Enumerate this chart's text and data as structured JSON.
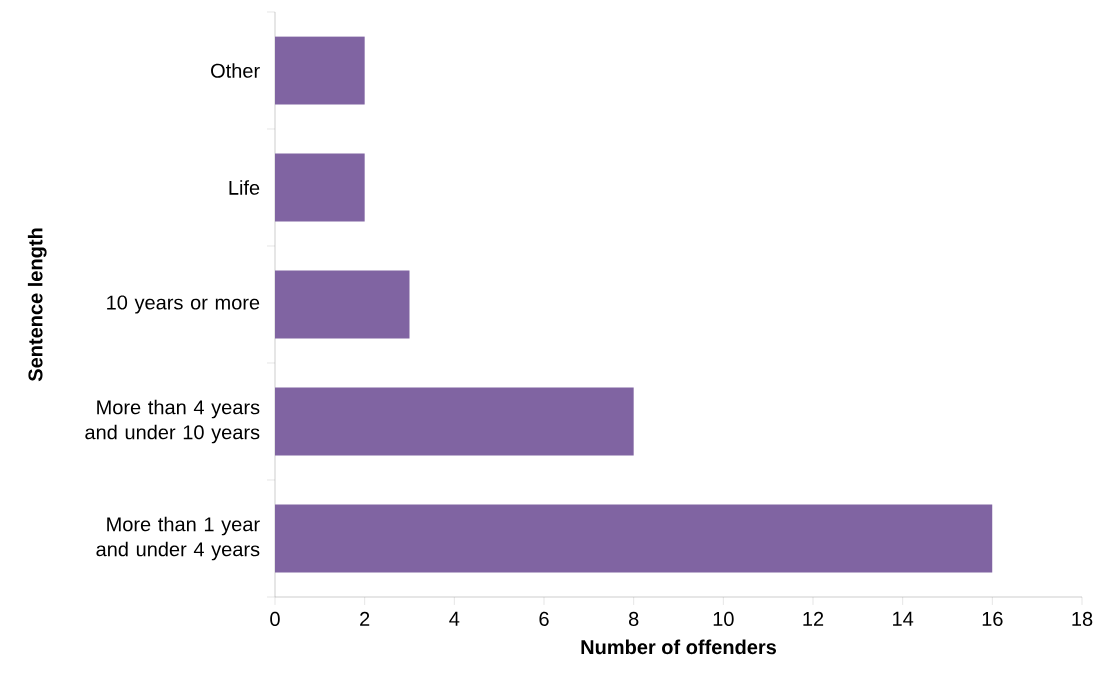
{
  "chart_data": {
    "type": "bar",
    "orientation": "horizontal",
    "xlabel": "Number of offenders",
    "ylabel": "Sentence length",
    "categories": [
      "Other",
      "Life",
      "10 years or more",
      "More than 4 years and under 10 years",
      "More than 1 year and under 4 years"
    ],
    "values": [
      2,
      2,
      3,
      8,
      16
    ],
    "color": "#8064a2",
    "xlim": [
      0,
      18
    ],
    "xticks": [
      0,
      2,
      4,
      6,
      8,
      10,
      12,
      14,
      16,
      18
    ]
  }
}
